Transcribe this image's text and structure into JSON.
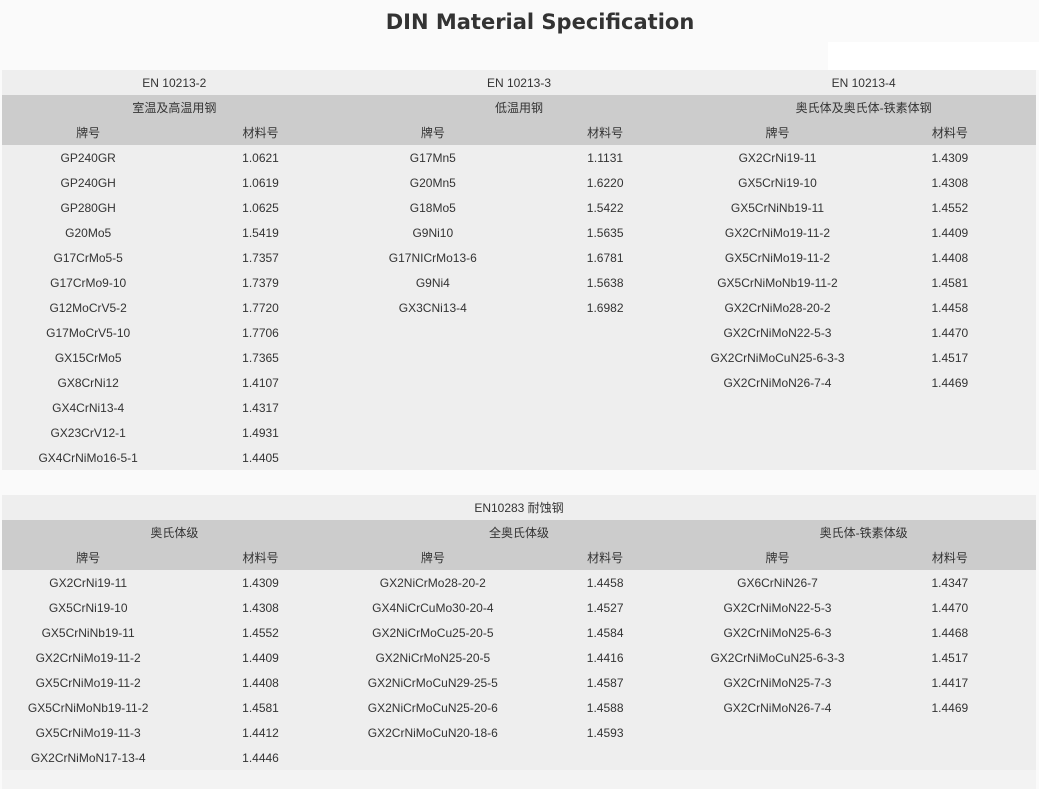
{
  "title": "DIN Material Specification",
  "col_name": "牌号",
  "col_num": "材料号",
  "tables": [
    {
      "groups": [
        {
          "standard": "EN 10213-2",
          "category": "室温及高温用钢",
          "rows": [
            [
              "GP240GR",
              "1.0621"
            ],
            [
              "GP240GH",
              "1.0619"
            ],
            [
              "GP280GH",
              "1.0625"
            ],
            [
              "G20Mo5",
              "1.5419"
            ],
            [
              "G17CrMo5-5",
              "1.7357"
            ],
            [
              "G17CrMo9-10",
              "1.7379"
            ],
            [
              "G12MoCrV5-2",
              "1.7720"
            ],
            [
              "G17MoCrV5-10",
              "1.7706"
            ],
            [
              "GX15CrMo5",
              "1.7365"
            ],
            [
              "GX8CrNi12",
              "1.4107"
            ],
            [
              "GX4CrNi13-4",
              "1.4317"
            ],
            [
              "GX23CrV12-1",
              "1.4931"
            ],
            [
              "GX4CrNiMo16-5-1",
              "1.4405"
            ]
          ]
        },
        {
          "standard": "EN 10213-3",
          "category": "低温用钢",
          "rows": [
            [
              "G17Mn5",
              "1.1131"
            ],
            [
              "G20Mn5",
              "1.6220"
            ],
            [
              "G18Mo5",
              "1.5422"
            ],
            [
              "G9Ni10",
              "1.5635"
            ],
            [
              "G17NICrMo13-6",
              "1.6781"
            ],
            [
              "G9Ni4",
              "1.5638"
            ],
            [
              "GX3CNi13-4",
              "1.6982"
            ]
          ]
        },
        {
          "standard": "EN 10213-4",
          "category": "奥氏体及奥氏体-铁素体钢",
          "rows": [
            [
              "GX2CrNi19-11",
              "1.4309"
            ],
            [
              "GX5CrNi19-10",
              "1.4308"
            ],
            [
              "GX5CrNiNb19-11",
              "1.4552"
            ],
            [
              "GX2CrNiMo19-11-2",
              "1.4409"
            ],
            [
              "GX5CrNiMo19-11-2",
              "1.4408"
            ],
            [
              "GX5CrNiMoNb19-11-2",
              "1.4581"
            ],
            [
              "GX2CrNiMo28-20-2",
              "1.4458"
            ],
            [
              "GX2CrNiMoN22-5-3",
              "1.4470"
            ],
            [
              "GX2CrNiMoCuN25-6-3-3",
              "1.4517"
            ],
            [
              "GX2CrNiMoN26-7-4",
              "1.4469"
            ]
          ]
        }
      ]
    },
    {
      "standard": "EN10283  耐蚀钢",
      "groups": [
        {
          "category": "奥氏体级",
          "rows": [
            [
              "GX2CrNi19-11",
              "1.4309"
            ],
            [
              "GX5CrNi19-10",
              "1.4308"
            ],
            [
              "GX5CrNiNb19-11",
              "1.4552"
            ],
            [
              "GX2CrNiMo19-11-2",
              "1.4409"
            ],
            [
              "GX5CrNiMo19-11-2",
              "1.4408"
            ],
            [
              "GX5CrNiMoNb19-11-2",
              "1.4581"
            ],
            [
              "GX5CrNiMo19-11-3",
              "1.4412"
            ],
            [
              "GX2CrNiMoN17-13-4",
              "1.4446"
            ]
          ]
        },
        {
          "category": "全奥氏体级",
          "rows": [
            [
              "GX2NiCrMo28-20-2",
              "1.4458"
            ],
            [
              "GX4NiCrCuMo30-20-4",
              "1.4527"
            ],
            [
              "GX2NiCrMoCu25-20-5",
              "1.4584"
            ],
            [
              "GX2NiCrMoN25-20-5",
              "1.4416"
            ],
            [
              "GX2NiCrMoCuN29-25-5",
              "1.4587"
            ],
            [
              "GX2NiCrMoCuN25-20-6",
              "1.4588"
            ],
            [
              "GX2CrNiMoCuN20-18-6",
              "1.4593"
            ]
          ]
        },
        {
          "category": "奥氏体-铁素体级",
          "rows": [
            [
              "GX6CrNiN26-7",
              "1.4347"
            ],
            [
              "GX2CrNiMoN22-5-3",
              "1.4470"
            ],
            [
              "GX2CrNiMoN25-6-3",
              "1.4468"
            ],
            [
              "GX2CrNiMoCuN25-6-3-3",
              "1.4517"
            ],
            [
              "GX2CrNiMoN25-7-3",
              "1.4417"
            ],
            [
              "GX2CrNiMoN26-7-4",
              "1.4469"
            ]
          ]
        }
      ]
    }
  ]
}
